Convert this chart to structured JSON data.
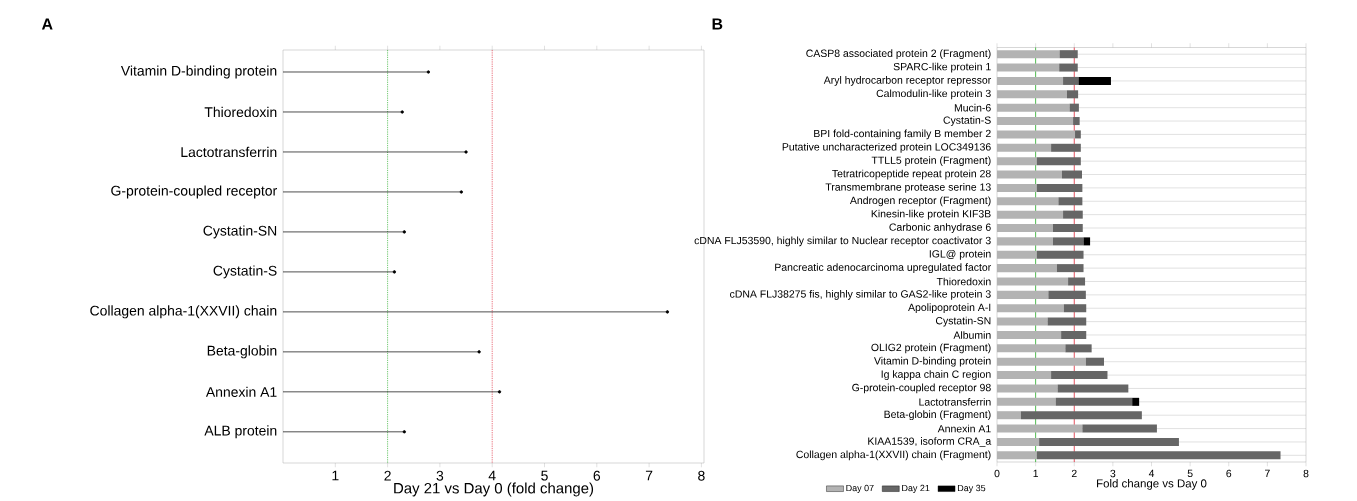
{
  "chart_data": [
    {
      "type": "lollipop",
      "title": "A",
      "orientation": "horizontal",
      "marker": "circle",
      "color": "#000000",
      "categories": [
        "Vitamin D-binding protein",
        "Thioredoxin",
        "Lactotransferrin",
        "G-protein-coupled receptor",
        "Cystatin-SN",
        "Cystatin-S",
        "Collagen alpha-1(XXVII) chain",
        "Beta-globin",
        "Annexin A1",
        "ALB protein"
      ],
      "values": [
        2.78,
        2.28,
        3.5,
        3.41,
        2.32,
        2.13,
        7.35,
        3.75,
        4.14,
        2.32
      ],
      "xlabel": "Day 21 vs Day 0 (fold change)",
      "xlim": [
        0,
        8.05
      ],
      "xticks": [
        1,
        2,
        3,
        4,
        5,
        6,
        7,
        8
      ],
      "ref_lines": [
        {
          "axis": "x",
          "value": 2,
          "color": "#22aa22",
          "line_style": "dotted"
        },
        {
          "axis": "x",
          "value": 4,
          "color": "#dd2233",
          "line_style": "dotted"
        }
      ],
      "grid": false
    },
    {
      "type": "bar",
      "title": "B",
      "orientation": "horizontal",
      "stacked": true,
      "legend": "bottom left",
      "grid": "y",
      "categories": [
        "CASP8 associated protein 2 (Fragment)",
        "SPARC-like protein 1",
        "Aryl hydrocarbon receptor repressor",
        "Calmodulin-like protein 3",
        "Mucin-6",
        "Cystatin-S",
        "BPI fold-containing family B member 2",
        "Putative uncharacterized protein LOC349136",
        "TTLL5 protein (Fragment)",
        "Tetratricopeptide repeat protein 28",
        "Transmembrane protease serine 13",
        "Androgen receptor (Fragment)",
        "Kinesin-like protein KIF3B",
        "Carbonic anhydrase 6",
        "cDNA FLJ53590, highly similar to Nuclear receptor coactivator 3",
        "IGL@ protein",
        "Pancreatic adenocarcinoma upregulated factor",
        "Thioredoxin",
        "cDNA FLJ38275 fis, highly similar to GAS2-like protein 3",
        "Apolipoprotein A-I",
        "Cystatin-SN",
        "Albumin",
        "OLIG2 protein (Fragment)",
        "Vitamin D-binding protein",
        "Ig kappa chain C region",
        "G-protein-coupled receptor 98",
        "Lactotransferrin",
        "Beta-globin (Fragment)",
        "Annexin A1",
        "KIAA1539, isoform CRA_a",
        "Collagen alpha-1(XXVII) chain (Fragment)"
      ],
      "series": [
        {
          "name": "Day 07",
          "color": "#b3b3b3",
          "values": [
            1.62,
            1.61,
            1.71,
            1.81,
            1.88,
            1.97,
            2.02,
            1.4,
            1.03,
            1.68,
            1.03,
            1.59,
            1.71,
            1.45,
            1.45,
            1.03,
            1.55,
            1.84,
            1.33,
            1.73,
            1.31,
            1.66,
            1.77,
            2.3,
            1.4,
            1.57,
            1.52,
            0.62,
            2.21,
            1.09,
            1.03
          ]
        },
        {
          "name": "Day 21",
          "color": "#666666",
          "values": [
            0.47,
            0.48,
            0.4,
            0.29,
            0.24,
            0.17,
            0.15,
            0.77,
            1.14,
            0.52,
            1.18,
            0.62,
            0.51,
            0.77,
            0.79,
            1.21,
            0.69,
            0.44,
            0.97,
            0.58,
            1.0,
            0.65,
            0.68,
            0.47,
            1.46,
            1.83,
            1.98,
            3.13,
            1.93,
            3.62,
            6.31
          ]
        },
        {
          "name": "Day 35",
          "color": "#000000",
          "values": [
            null,
            null,
            0.84,
            null,
            null,
            null,
            null,
            null,
            null,
            null,
            null,
            null,
            null,
            null,
            0.17,
            null,
            null,
            null,
            null,
            null,
            null,
            null,
            null,
            null,
            null,
            null,
            0.18,
            null,
            null,
            null,
            null
          ]
        }
      ],
      "xlabel": "Fold change vs Day 0",
      "xlim": [
        0,
        8
      ],
      "xticks": [
        0,
        1,
        2,
        3,
        4,
        5,
        6,
        7,
        8
      ],
      "ref_lines": [
        {
          "axis": "x",
          "value": 1,
          "color": "#22aa22",
          "line_style": "solid"
        },
        {
          "axis": "x",
          "value": 2,
          "color": "#dd2233",
          "line_style": "solid"
        }
      ]
    }
  ]
}
